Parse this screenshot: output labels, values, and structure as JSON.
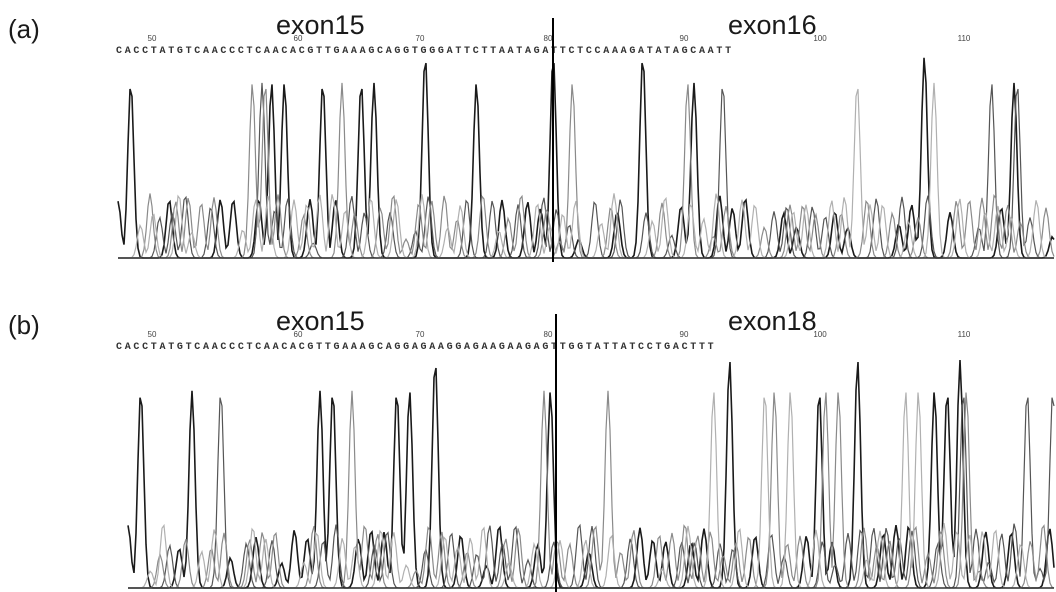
{
  "panels": [
    {
      "label": "(a)",
      "exon_left": "exon15",
      "exon_right": "exon16",
      "sequence": "CACCTATGTCAACCCTCAACACGTTGAAAGCAGGTGGGATTCTTAATAGATTCTCCAAAGATATAGCAATT",
      "ticks": [
        "50",
        "60",
        "70",
        "80",
        "90",
        "100",
        "110"
      ]
    },
    {
      "label": "(b)",
      "exon_left": "exon15",
      "exon_right": "exon18",
      "sequence": "CACCTATGTCAACCCTCAACACGTTGAAAGCAGGAGAAGGAGAAGAAGAGTTGGTATTATCCTGACTTT",
      "ticks": [
        "50",
        "60",
        "70",
        "80",
        "90",
        "100",
        "110"
      ]
    }
  ],
  "colors": {
    "trace_dark": "#1a1a1a",
    "trace_mid": "#555555",
    "trace_light": "#8a8a8a",
    "trace_faint": "#b0b0b0",
    "junction": "#000000"
  }
}
